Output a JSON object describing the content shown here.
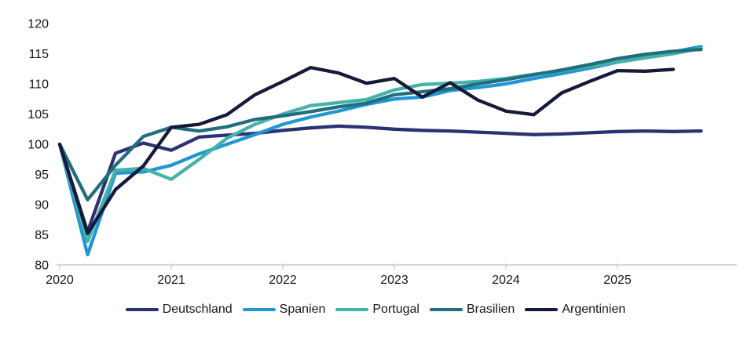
{
  "chart_data": {
    "type": "line",
    "title": "",
    "xlabel": "",
    "ylabel": "",
    "index_note": "all series start at 100 in 2020Q1, quarterly data",
    "x_start_year": 2020,
    "x_step_years": 0.25,
    "x_tick_labels": [
      "2020",
      "2021",
      "2022",
      "2023",
      "2024",
      "2025"
    ],
    "y_tick_labels": [
      "80",
      "85",
      "90",
      "95",
      "100",
      "105",
      "110",
      "115",
      "120"
    ],
    "ylim": [
      80,
      120
    ],
    "grid": "off",
    "legend_position": "bottom",
    "axis_color": "#c8ccd1",
    "label_color": "#17171c",
    "series": [
      {
        "name": "Deutschland",
        "color": "#2b3274",
        "values": [
          100,
          85.5,
          98.5,
          100.2,
          99.0,
          101.2,
          101.5,
          101.8,
          102.3,
          102.7,
          103.0,
          102.8,
          102.5,
          102.3,
          102.2,
          102.0,
          101.8,
          101.6,
          101.7,
          101.9,
          102.1,
          102.2,
          102.1,
          102.2
        ]
      },
      {
        "name": "Spanien",
        "color": "#2196d4",
        "values": [
          100,
          81.7,
          95.2,
          95.4,
          96.5,
          98.4,
          100.0,
          101.6,
          103.3,
          104.5,
          105.5,
          106.6,
          107.5,
          107.8,
          108.9,
          109.4,
          110.0,
          110.9,
          111.7,
          112.6,
          113.6,
          114.5,
          115.3,
          116.2
        ]
      },
      {
        "name": "Portugal",
        "color": "#45b2a9",
        "values": [
          100,
          83.9,
          95.7,
          96.0,
          94.2,
          97.5,
          101.0,
          103.3,
          105.0,
          106.4,
          106.9,
          107.4,
          109.0,
          109.9,
          110.1,
          110.4,
          110.9,
          111.6,
          112.2,
          112.9,
          113.6,
          114.3,
          115.0,
          115.9
        ]
      },
      {
        "name": "Brasilien",
        "color": "#216e7d",
        "values": [
          100,
          90.8,
          96.5,
          101.3,
          102.8,
          102.2,
          102.9,
          104.1,
          104.7,
          105.4,
          106.2,
          106.8,
          108.2,
          108.7,
          109.2,
          110.0,
          110.7,
          111.5,
          112.3,
          113.2,
          114.2,
          114.9,
          115.4,
          115.7
        ]
      },
      {
        "name": "Argentinien",
        "color": "#151a3a",
        "values": [
          100,
          85.2,
          92.5,
          96.4,
          102.8,
          103.3,
          104.9,
          108.2,
          110.4,
          112.7,
          111.8,
          110.1,
          110.9,
          107.8,
          110.2,
          107.3,
          105.5,
          104.9,
          108.5,
          110.4,
          112.2,
          112.1,
          112.4
        ]
      }
    ]
  }
}
